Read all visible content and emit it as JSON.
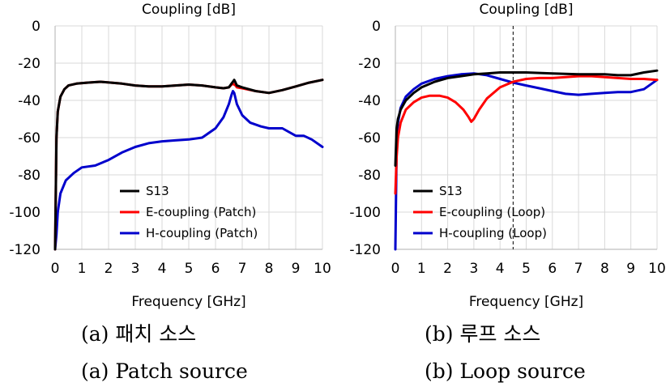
{
  "chart_data": [
    {
      "type": "line",
      "title": "Coupling [dB]",
      "xlabel": "Frequency [GHz]",
      "ylabel": "",
      "xlim": [
        0,
        10
      ],
      "ylim": [
        -120,
        0
      ],
      "xticks": [
        0,
        1,
        2,
        3,
        4,
        5,
        6,
        7,
        8,
        9,
        10
      ],
      "yticks": [
        0,
        -20,
        -40,
        -60,
        -80,
        -100,
        -120
      ],
      "grid": true,
      "legend_position": "lower-center",
      "caption_korean": "(a) 패치 소스",
      "caption_english": "(a) Patch source",
      "series": [
        {
          "name": "S13",
          "color": "#000000",
          "x": [
            0,
            0.05,
            0.1,
            0.2,
            0.35,
            0.5,
            0.8,
            1.2,
            1.7,
            2.5,
            3.0,
            3.5,
            4.0,
            4.5,
            5.0,
            5.5,
            6.0,
            6.3,
            6.5,
            6.6,
            6.65,
            6.7,
            6.75,
            6.8,
            7.0,
            7.5,
            8.0,
            8.5,
            9.0,
            9.5,
            10.0
          ],
          "y": [
            -120,
            -60,
            -46,
            -38,
            -34,
            -32,
            -31,
            -30.5,
            -30,
            -31,
            -32,
            -32.5,
            -32.5,
            -32,
            -31.5,
            -32,
            -33,
            -33.5,
            -33,
            -31,
            -30,
            -29,
            -30.5,
            -32,
            -33,
            -35,
            -36,
            -34.5,
            -32.5,
            -30.5,
            -29
          ]
        },
        {
          "name": "E-coupling (Patch)",
          "color": "#ff0000",
          "x": [
            0,
            0.05,
            0.1,
            0.2,
            0.35,
            0.5,
            0.8,
            1.2,
            1.7,
            2.5,
            3.0,
            3.5,
            4.0,
            4.5,
            5.0,
            5.5,
            6.0,
            6.3,
            6.5,
            6.6,
            6.65,
            6.7,
            6.75,
            6.8,
            7.0,
            7.5,
            8.0,
            8.5,
            9.0,
            9.5,
            10.0
          ],
          "y": [
            -120,
            -60,
            -46,
            -38,
            -34,
            -32,
            -31,
            -30.5,
            -30,
            -31,
            -32,
            -32.5,
            -32.5,
            -32,
            -31.5,
            -32,
            -33,
            -33.5,
            -33,
            -31.5,
            -31,
            -31.5,
            -32,
            -33,
            -33.5,
            -35,
            -36,
            -34.5,
            -32.5,
            -30.5,
            -29
          ]
        },
        {
          "name": "H-coupling (Patch)",
          "color": "#0000cc",
          "x": [
            0,
            0.05,
            0.1,
            0.2,
            0.4,
            0.7,
            1.0,
            1.5,
            2.0,
            2.5,
            3.0,
            3.5,
            4.0,
            4.5,
            5.0,
            5.5,
            6.0,
            6.3,
            6.5,
            6.6,
            6.65,
            6.7,
            6.8,
            7.0,
            7.3,
            7.7,
            8.0,
            8.5,
            9.0,
            9.3,
            9.6,
            10.0
          ],
          "y": [
            -120,
            -112,
            -100,
            -90,
            -83,
            -79,
            -76,
            -75,
            -72,
            -68,
            -65,
            -63,
            -62,
            -61.5,
            -61,
            -60,
            -55,
            -49,
            -42,
            -37,
            -35,
            -36,
            -42,
            -48,
            -52,
            -54,
            -55,
            -55,
            -59,
            -59,
            -61,
            -65
          ]
        }
      ]
    },
    {
      "type": "line",
      "title": "Coupling [dB]",
      "xlabel": "Frequency [GHz]",
      "ylabel": "",
      "xlim": [
        0,
        10
      ],
      "ylim": [
        -120,
        0
      ],
      "xticks": [
        0,
        1,
        2,
        3,
        4,
        5,
        6,
        7,
        8,
        9,
        10
      ],
      "yticks": [
        0,
        -20,
        -40,
        -60,
        -80,
        -100,
        -120
      ],
      "grid": true,
      "legend_position": "lower-center",
      "vertical_marker_x": 4.5,
      "caption_korean": "(b) 루프 소스",
      "caption_english": "(b) Loop source",
      "series": [
        {
          "name": "S13",
          "color": "#000000",
          "x": [
            0,
            0.05,
            0.1,
            0.2,
            0.4,
            0.7,
            1.0,
            1.5,
            2.0,
            2.5,
            3.0,
            3.5,
            4.0,
            4.5,
            5.0,
            6.0,
            7.0,
            8.0,
            8.5,
            9.0,
            9.5,
            10.0
          ],
          "y": [
            -75,
            -55,
            -50,
            -45,
            -40,
            -36,
            -33,
            -30,
            -28,
            -27,
            -26,
            -25.5,
            -25,
            -25,
            -25,
            -25.5,
            -26,
            -26,
            -26.5,
            -26.5,
            -25,
            -24
          ]
        },
        {
          "name": "E-coupling (Loop)",
          "color": "#ff0000",
          "x": [
            0,
            0.05,
            0.1,
            0.2,
            0.4,
            0.7,
            1.0,
            1.3,
            1.7,
            2.0,
            2.3,
            2.6,
            2.8,
            2.9,
            3.0,
            3.2,
            3.5,
            4.0,
            4.5,
            5.0,
            5.5,
            6.0,
            6.5,
            7.0,
            7.5,
            8.0,
            8.5,
            9.0,
            9.5,
            10.0
          ],
          "y": [
            -90,
            -70,
            -60,
            -52,
            -45,
            -41,
            -38.5,
            -37.5,
            -37.5,
            -38.5,
            -41,
            -45,
            -49,
            -51.5,
            -50,
            -45,
            -39,
            -33,
            -30,
            -28.5,
            -28,
            -28,
            -27.5,
            -27,
            -27,
            -27.5,
            -28,
            -28.5,
            -28.5,
            -29
          ]
        },
        {
          "name": "H-coupling (Loop)",
          "color": "#0000cc",
          "x": [
            0,
            0.05,
            0.1,
            0.2,
            0.4,
            0.7,
            1.0,
            1.5,
            2.0,
            2.5,
            3.0,
            3.5,
            4.0,
            4.5,
            5.0,
            5.5,
            6.0,
            6.5,
            7.0,
            7.5,
            8.0,
            8.5,
            9.0,
            9.5,
            10.0
          ],
          "y": [
            -120,
            -65,
            -52,
            -44,
            -38,
            -34,
            -31,
            -28.5,
            -27,
            -26,
            -25.5,
            -26.5,
            -28.5,
            -30.5,
            -32,
            -33.5,
            -35,
            -36.5,
            -37,
            -36.5,
            -36,
            -35.5,
            -35.5,
            -34,
            -29
          ]
        }
      ]
    }
  ]
}
